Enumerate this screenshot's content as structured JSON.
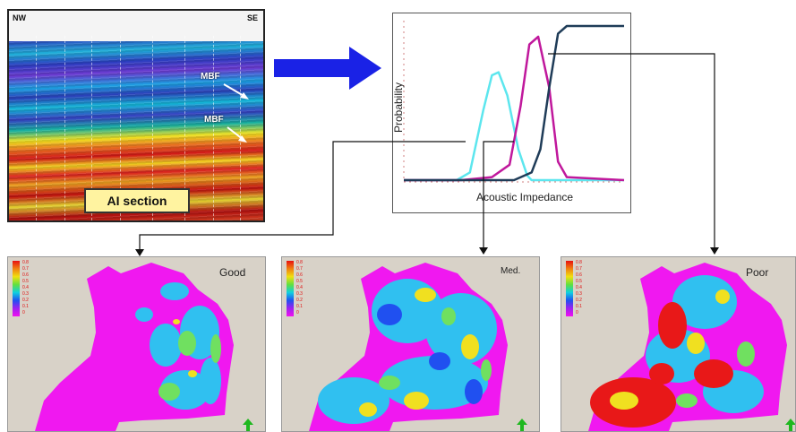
{
  "seismic": {
    "left_label": "NW",
    "right_label": "SE",
    "horizon_labels": [
      "MBF",
      "MBF"
    ],
    "section_label": "AI section"
  },
  "chart": {
    "ylabel": "Probability",
    "xlabel": "Acoustic Impedance"
  },
  "chart_data": {
    "type": "line",
    "xlabel": "Acoustic Impedance",
    "ylabel": "Probability",
    "ylim": [
      0,
      1
    ],
    "grid": false,
    "series": [
      {
        "color": "#5ce6ee",
        "x": [
          0.0,
          0.24,
          0.3,
          0.36,
          0.4,
          0.43,
          0.47,
          0.52,
          0.56,
          0.58,
          1.0
        ],
        "values": [
          0.0,
          0.0,
          0.05,
          0.45,
          0.68,
          0.7,
          0.55,
          0.2,
          0.03,
          0.0,
          0.0
        ]
      },
      {
        "color": "#c0189c",
        "x": [
          0.0,
          0.26,
          0.4,
          0.48,
          0.53,
          0.57,
          0.61,
          0.66,
          0.7,
          0.74,
          1.0
        ],
        "values": [
          0.0,
          0.0,
          0.02,
          0.1,
          0.48,
          0.88,
          0.93,
          0.6,
          0.12,
          0.02,
          0.0
        ]
      },
      {
        "color": "#1f3c58",
        "x": [
          0.0,
          0.5,
          0.58,
          0.62,
          0.66,
          0.7,
          0.74,
          1.0
        ],
        "values": [
          0.0,
          0.0,
          0.05,
          0.2,
          0.6,
          0.95,
          1.0,
          1.0
        ]
      }
    ]
  },
  "maps": [
    {
      "title": "Good",
      "colors": {
        "bg": "#f018f0",
        "patch": "#30c0f0",
        "patch2": "#70e060"
      }
    },
    {
      "title": "Med.",
      "colors": {
        "bg": "#f018f0",
        "patch": "#30c0f0",
        "patch2": "#f0e020"
      }
    },
    {
      "title": "Poor",
      "colors": {
        "bg": "#f018f0",
        "patch": "#e81818",
        "patch2": "#f0e020"
      }
    }
  ],
  "legend_ticks": [
    "0.8",
    "0.7",
    "0.6",
    "0.5",
    "0.4",
    "0.3",
    "0.2",
    "0.1",
    "0"
  ],
  "colors": {
    "arrow_blue": "#1a22e6",
    "north_arrow": "#1fb81f"
  },
  "icons": {
    "north": "north-arrow-icon",
    "flow": "right-arrow-icon"
  }
}
